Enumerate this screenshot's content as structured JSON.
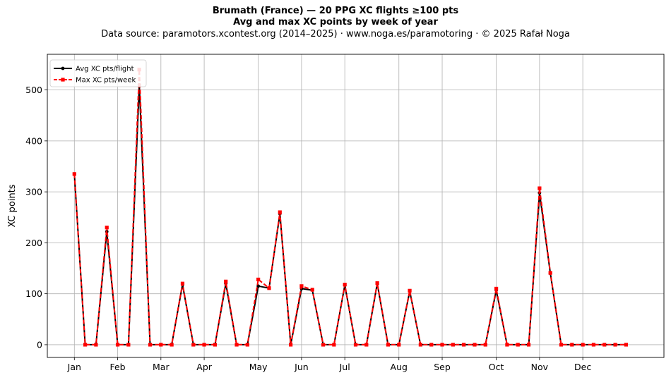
{
  "header": {
    "title": "Brumath (France)  —  20 PPG XC flights ≥100 pts",
    "subtitle": "Avg and max XC points by week of year",
    "source": "Data source: paramotors.xcontest.org (2014–2025)  ·  www.noga.es/paramotoring  ·  © 2025 Rafał Noga"
  },
  "chart_data": {
    "type": "line",
    "title": "Brumath (France)  —  20 PPG XC flights ≥100 pts",
    "subtitle": "Avg and max XC points by week of year",
    "xlabel": "",
    "ylabel": "XC points",
    "x_unit": "week of year",
    "x_ticks": [
      {
        "label": "Jan",
        "week": 1
      },
      {
        "label": "Feb",
        "week": 5
      },
      {
        "label": "Mar",
        "week": 9
      },
      {
        "label": "Apr",
        "week": 13
      },
      {
        "label": "May",
        "week": 18
      },
      {
        "label": "Jun",
        "week": 22
      },
      {
        "label": "Jul",
        "week": 26
      },
      {
        "label": "Aug",
        "week": 31
      },
      {
        "label": "Sep",
        "week": 35
      },
      {
        "label": "Oct",
        "week": 40
      },
      {
        "label": "Nov",
        "week": 44
      },
      {
        "label": "Dec",
        "week": 48
      }
    ],
    "yticks": [
      0,
      100,
      200,
      300,
      400,
      500
    ],
    "xlim": [
      -1.5,
      55.5
    ],
    "ylim": [
      -25,
      570
    ],
    "grid": true,
    "legend_position": "top-left",
    "x": [
      1,
      2,
      3,
      4,
      5,
      6,
      7,
      8,
      9,
      10,
      11,
      12,
      13,
      14,
      15,
      16,
      17,
      18,
      19,
      20,
      21,
      22,
      23,
      24,
      25,
      26,
      27,
      28,
      29,
      30,
      31,
      32,
      33,
      34,
      35,
      36,
      37,
      38,
      39,
      40,
      41,
      42,
      43,
      44,
      45,
      46,
      47,
      48,
      49,
      50,
      51,
      52
    ],
    "series": [
      {
        "name": "Avg XC pts/flight",
        "color": "#000000",
        "marker": "circle",
        "linestyle": "solid",
        "values": [
          335,
          0,
          0,
          222,
          0,
          0,
          510,
          0,
          0,
          0,
          118,
          0,
          0,
          0,
          120,
          0,
          0,
          115,
          111,
          257,
          0,
          110,
          107,
          0,
          0,
          117,
          0,
          0,
          120,
          0,
          0,
          105,
          0,
          0,
          0,
          0,
          0,
          0,
          0,
          107,
          0,
          0,
          0,
          298,
          140,
          0,
          0,
          0,
          0,
          0,
          0,
          0
        ]
      },
      {
        "name": "Max XC pts/week",
        "color": "#ff0000",
        "marker": "square",
        "linestyle": "dashed",
        "values": [
          335,
          0,
          0,
          230,
          0,
          0,
          540,
          0,
          0,
          0,
          120,
          0,
          0,
          0,
          124,
          0,
          0,
          128,
          111,
          260,
          0,
          115,
          108,
          0,
          0,
          118,
          0,
          0,
          121,
          0,
          0,
          106,
          0,
          0,
          0,
          0,
          0,
          0,
          0,
          110,
          0,
          0,
          0,
          307,
          141,
          0,
          0,
          0,
          0,
          0,
          0,
          0
        ]
      }
    ]
  }
}
